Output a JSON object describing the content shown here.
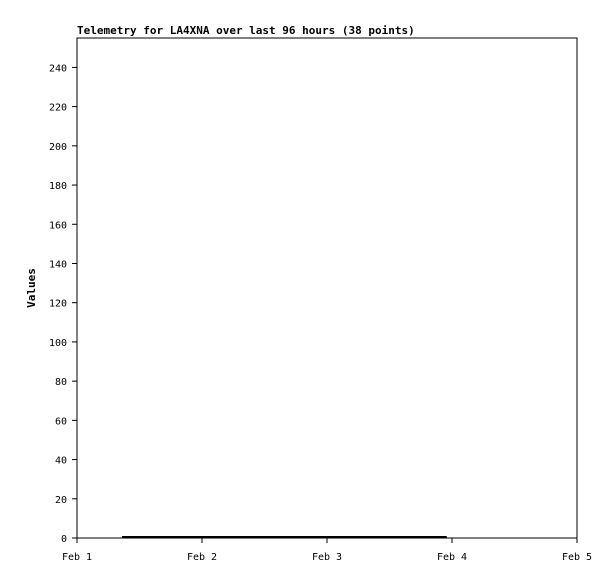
{
  "chart_data": {
    "type": "line",
    "title": "Telemetry for LA4XNA over last 96 hours (38 points)",
    "xlabel": "",
    "ylabel": "Values",
    "xlim": [
      "Feb 1 00:00",
      "Feb 5 00:00"
    ],
    "ylim": [
      0,
      255
    ],
    "x_ticks": [
      "Feb 1",
      "Feb 2",
      "Feb 3",
      "Feb 4",
      "Feb 5"
    ],
    "y_ticks": [
      0,
      20,
      40,
      60,
      80,
      100,
      120,
      140,
      160,
      180,
      200,
      220,
      240
    ],
    "grid": false,
    "series": [
      {
        "color": "#000000",
        "points": [
          {
            "x": "Feb 1 08:40",
            "y": 0
          },
          {
            "x": "Feb 3 23:00",
            "y": 0
          }
        ]
      }
    ]
  }
}
